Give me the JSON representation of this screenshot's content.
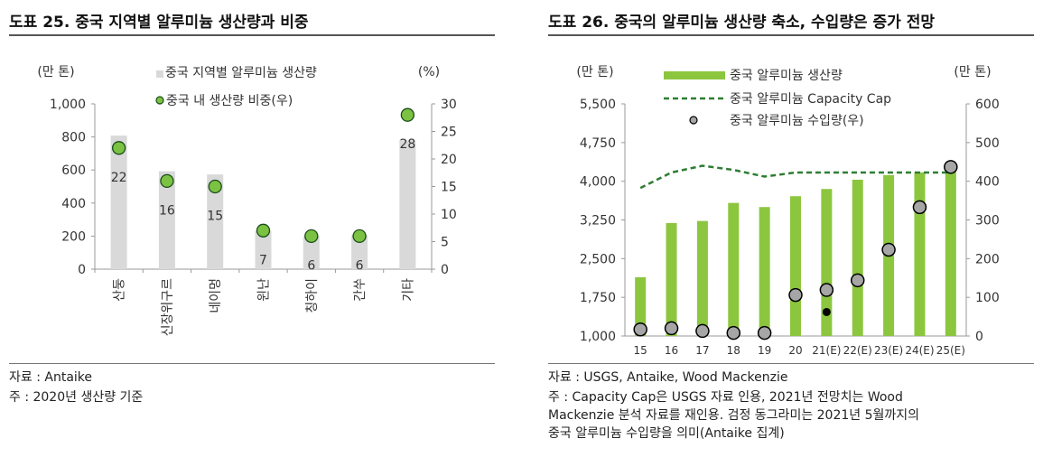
{
  "left": {
    "title": "도표 25. 중국 지역별 알루미늄 생산량과 비중",
    "source": "자료 : Antaike",
    "note": "주 : 2020년 생산량 기준",
    "chart_data": {
      "type": "bar",
      "categories": [
        "산둥",
        "신장위구르",
        "네이멍",
        "윈난",
        "칭하이",
        "간쑤",
        "기타"
      ],
      "series": [
        {
          "name": "중국 지역별 알루미늄 생산량",
          "type": "bar",
          "axis": "left",
          "color": "#d9d9d9",
          "values": [
            808,
            592,
            573,
            232,
            200,
            205,
            780
          ]
        },
        {
          "name": "중국 내 생산량 비중(우)",
          "type": "scatter",
          "axis": "right",
          "color": "#7cc242",
          "values": [
            22,
            16,
            15,
            7,
            6,
            6,
            28
          ],
          "labels": [
            "22",
            "16",
            "15",
            "7",
            "6",
            "6",
            "28"
          ]
        }
      ],
      "ylabel_left": "(만 톤)",
      "ylabel_right": "(%)",
      "ylim_left": [
        0,
        1000
      ],
      "yticks_left": [
        "0",
        "200",
        "400",
        "600",
        "800",
        "1,000"
      ],
      "ylim_right": [
        0,
        30
      ],
      "yticks_right": [
        "0",
        "5",
        "10",
        "15",
        "20",
        "25",
        "30"
      ],
      "legend": "top"
    }
  },
  "right": {
    "title": "도표 26. 중국의 알루미늄 생산량 축소, 수입량은 증가 전망",
    "source": "자료 : USGS, Antaike, Wood Mackenzie",
    "note_lines": [
      "주 : Capacity Cap은 USGS 자료 인용, 2021년 전망치는 Wood",
      "Mackenzie 분석 자료를 재인용. 검정 동그라미는 2021년 5월까지의",
      "중국 알루미늄 수입량을 의미(Antaike 집계)"
    ],
    "chart_data": {
      "type": "bar",
      "categories": [
        "15",
        "16",
        "17",
        "18",
        "19",
        "20",
        "21(E)",
        "22(E)",
        "23(E)",
        "24(E)",
        "25(E)"
      ],
      "series": [
        {
          "name": "중국 알루미늄 생산량",
          "type": "bar",
          "axis": "left",
          "color": "#8cc63f",
          "values": [
            2140,
            3190,
            3230,
            3580,
            3500,
            3710,
            3850,
            4030,
            4120,
            4170,
            4350
          ]
        },
        {
          "name": "중국 알루미늄 Capacity Cap",
          "type": "line",
          "axis": "left",
          "color": "#2e7d32",
          "dash": true,
          "values": [
            3870,
            4170,
            4300,
            4220,
            4090,
            4170,
            4170,
            4170,
            4170,
            4170,
            4170
          ]
        },
        {
          "name": "중국 알루미늄 수입량(우)",
          "type": "scatter",
          "axis": "right",
          "color": "#a6a6a6",
          "values": [
            17,
            20,
            13,
            8,
            8,
            106,
            119,
            144,
            223,
            333,
            437
          ]
        },
        {
          "name": "",
          "type": "scatter",
          "axis": "right",
          "color": "#000000",
          "values": [
            null,
            null,
            null,
            null,
            null,
            null,
            62,
            null,
            null,
            null,
            null
          ]
        }
      ],
      "ylabel_left": "(만 톤)",
      "ylabel_right": "(만 톤)",
      "ylim_left": [
        1000,
        5500
      ],
      "yticks_left": [
        "1,000",
        "1,750",
        "2,500",
        "3,250",
        "4,000",
        "4,750",
        "5,500"
      ],
      "ylim_right": [
        0,
        600
      ],
      "yticks_right": [
        "0",
        "100",
        "200",
        "300",
        "400",
        "500",
        "600"
      ],
      "legend": "top"
    }
  }
}
